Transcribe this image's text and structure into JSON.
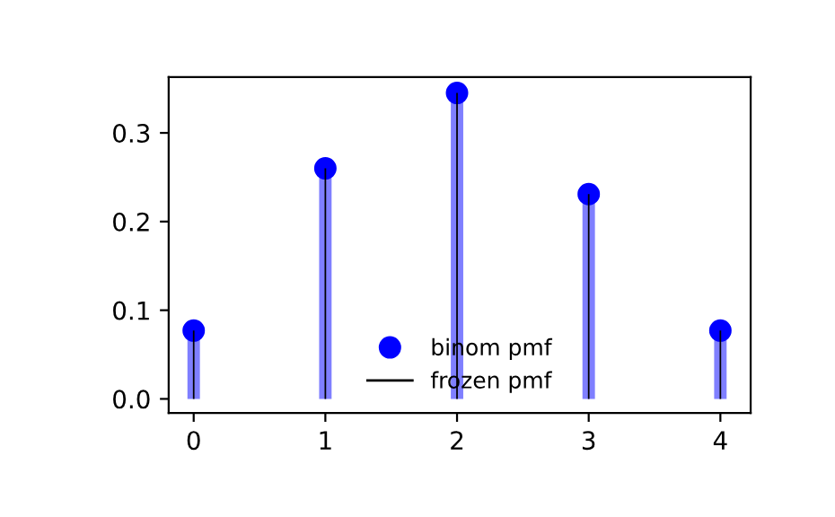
{
  "chart_data": {
    "type": "lollipop",
    "x": [
      0,
      1,
      2,
      3,
      4
    ],
    "series": [
      {
        "name": "binom pmf",
        "color": "#0000ff",
        "marker": "circle",
        "values": [
          0.077,
          0.26,
          0.345,
          0.231,
          0.077
        ]
      },
      {
        "name": "frozen pmf",
        "type": "bar",
        "color": "#000000",
        "values": [
          0.077,
          0.26,
          0.345,
          0.231,
          0.077
        ]
      }
    ],
    "xlim": [
      -0.19,
      4.23
    ],
    "xticks": [
      0,
      1,
      2,
      3,
      4
    ],
    "ylim": [
      -0.016,
      0.363
    ],
    "yticks": [
      {
        "value": 0,
        "label": "0.0"
      },
      {
        "value": 0.1,
        "label": "0.1"
      },
      {
        "value": 0.2,
        "label": "0.2"
      },
      {
        "value": 0.3,
        "label": "0.3"
      }
    ],
    "grid": false,
    "legend": "bottom"
  }
}
